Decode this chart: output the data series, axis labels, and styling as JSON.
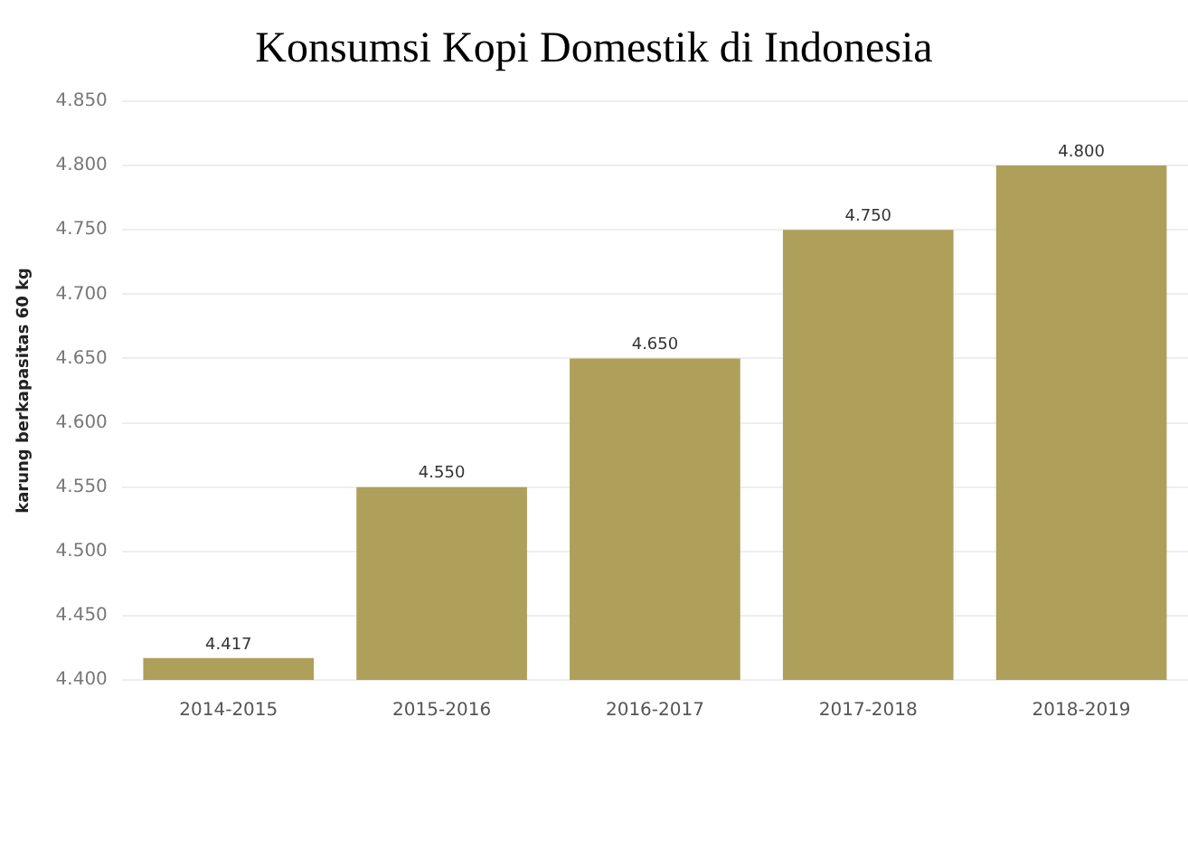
{
  "chart_data": {
    "type": "bar",
    "title": "Konsumsi Kopi Domestik di Indonesia",
    "ylabel": "karung berkapasitas 60 kg",
    "categories": [
      "2014-2015",
      "2015-2016",
      "2016-2017",
      "2017-2018",
      "2018-2019"
    ],
    "values": [
      4417,
      4550,
      4650,
      4750,
      4800
    ],
    "value_labels": [
      "4.417",
      "4.550",
      "4.650",
      "4.750",
      "4.800"
    ],
    "color": "#ae9f5b",
    "ylim": [
      4400,
      4850
    ],
    "yticks": [
      {
        "value": 4400,
        "label": "4.400"
      },
      {
        "value": 4450,
        "label": "4.450"
      },
      {
        "value": 4500,
        "label": "4.500"
      },
      {
        "value": 4550,
        "label": "4.550"
      },
      {
        "value": 4600,
        "label": "4.600"
      },
      {
        "value": 4650,
        "label": "4.650"
      },
      {
        "value": 4700,
        "label": "4.700"
      },
      {
        "value": 4750,
        "label": "4.750"
      },
      {
        "value": 4800,
        "label": "4.800"
      },
      {
        "value": 4850,
        "label": "4.850"
      }
    ],
    "grid": "y"
  }
}
